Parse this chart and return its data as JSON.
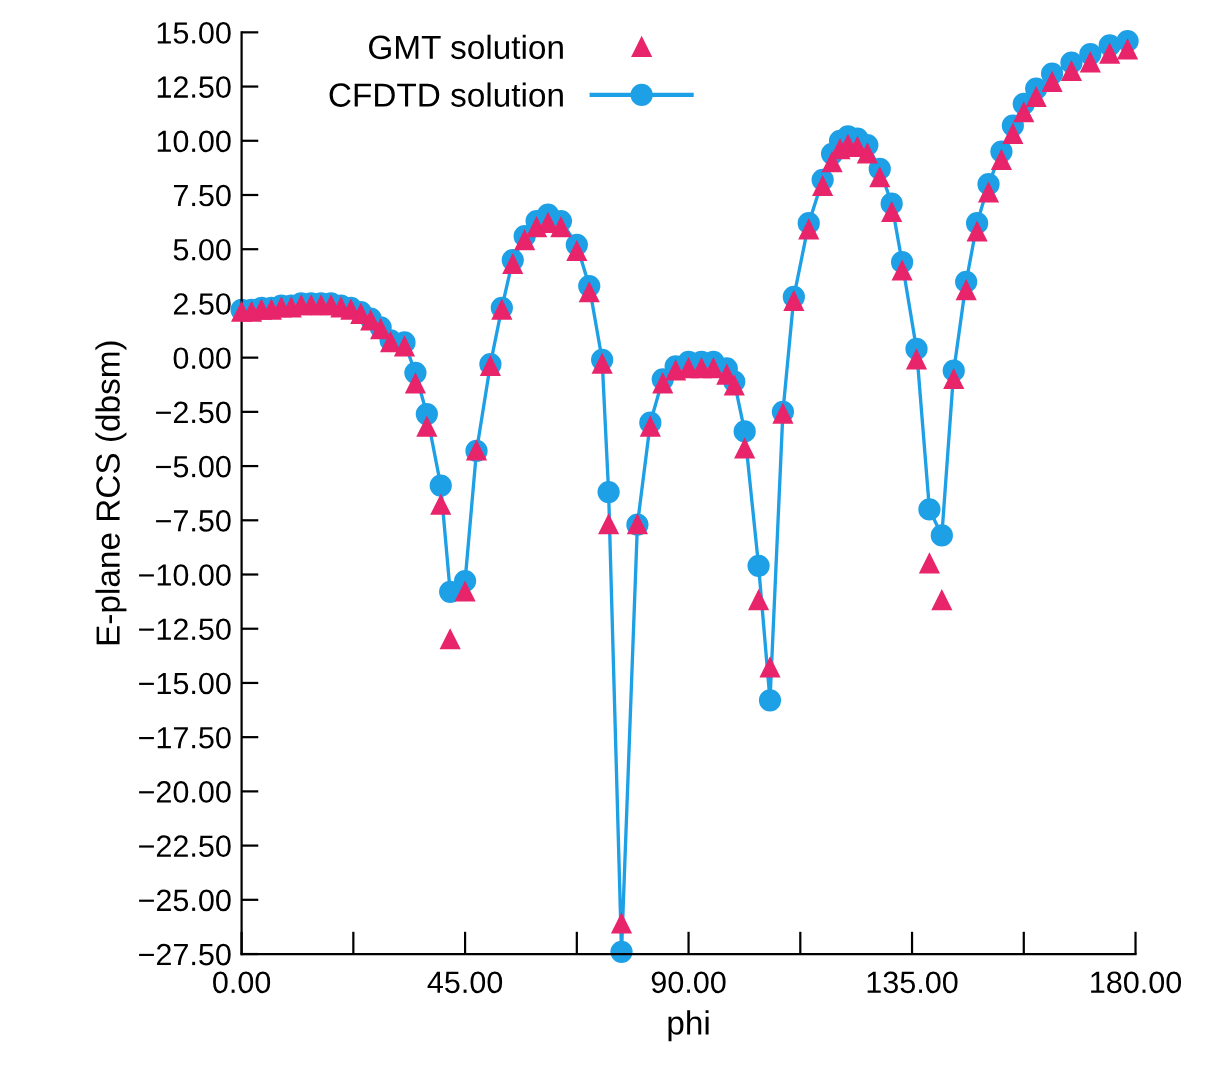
{
  "chart_data": {
    "type": "line",
    "xlabel": "phi",
    "ylabel": "E-plane RCS (dbsm)",
    "x": [
      0,
      2,
      4,
      6,
      8,
      10,
      12,
      14,
      16,
      18,
      20,
      22,
      24,
      26,
      28,
      30,
      32.8,
      35,
      37.3,
      40.1,
      42,
      45,
      47.3,
      50.1,
      52.4,
      54.6,
      57,
      59.4,
      61.7,
      64.3,
      67.5,
      70,
      72.6,
      73.9,
      76.5,
      79.7,
      82.3,
      84.8,
      87.4,
      90,
      92.6,
      95,
      97.7,
      99.2,
      101.3,
      104.1,
      106.4,
      109,
      111.2,
      114.2,
      117,
      118.9,
      120.5,
      122.1,
      124,
      126,
      128.5,
      130.9,
      133,
      135.9,
      138.5,
      141,
      143.4,
      145.9,
      148.1,
      150.4,
      153,
      155.3,
      157.5,
      160,
      163.2,
      167.1,
      170.9,
      174.8,
      178.4
    ],
    "series": [
      {
        "name": "GMT solution",
        "type": "scatter",
        "marker": "triangle",
        "color": "#e8246a",
        "values": [
          2.1,
          2.1,
          2.2,
          2.2,
          2.3,
          2.3,
          2.4,
          2.4,
          2.4,
          2.4,
          2.3,
          2.2,
          2.0,
          1.7,
          1.3,
          0.7,
          0.5,
          -1.2,
          -3.2,
          -6.8,
          -13.0,
          -10.8,
          -4.3,
          -0.4,
          2.2,
          4.3,
          5.4,
          6.0,
          6.2,
          6.0,
          4.9,
          3.0,
          -0.3,
          -7.7,
          -26.1,
          -7.7,
          -3.2,
          -1.2,
          -0.6,
          -0.5,
          -0.5,
          -0.5,
          -0.8,
          -1.3,
          -4.2,
          -11.2,
          -14.3,
          -2.6,
          2.6,
          5.9,
          7.9,
          9.0,
          9.6,
          9.8,
          9.7,
          9.4,
          8.3,
          6.7,
          4.0,
          -0.1,
          -9.5,
          -11.2,
          -1.0,
          3.1,
          5.8,
          7.6,
          9.1,
          10.3,
          11.3,
          12.0,
          12.7,
          13.2,
          13.6,
          14.0,
          14.2
        ]
      },
      {
        "name": "CFDTD solution",
        "marker": "circle",
        "color": "#1ea0e6",
        "values": [
          2.2,
          2.2,
          2.3,
          2.3,
          2.4,
          2.4,
          2.5,
          2.5,
          2.5,
          2.5,
          2.4,
          2.3,
          2.1,
          1.8,
          1.4,
          0.8,
          0.7,
          -0.7,
          -2.6,
          -5.9,
          -10.8,
          -10.3,
          -4.3,
          -0.3,
          2.3,
          4.5,
          5.6,
          6.3,
          6.6,
          6.3,
          5.2,
          3.3,
          -0.1,
          -6.2,
          -27.4,
          -7.7,
          -3.0,
          -1.0,
          -0.4,
          -0.2,
          -0.2,
          -0.2,
          -0.5,
          -1.1,
          -3.4,
          -9.6,
          -15.8,
          -2.5,
          2.8,
          6.2,
          8.2,
          9.4,
          10.0,
          10.2,
          10.1,
          9.8,
          8.7,
          7.1,
          4.4,
          0.4,
          -7.0,
          -8.2,
          -0.6,
          3.5,
          6.2,
          8.0,
          9.5,
          10.7,
          11.7,
          12.4,
          13.1,
          13.6,
          14.0,
          14.4,
          14.6
        ]
      }
    ],
    "xlim": [
      0,
      180
    ],
    "xticks": [
      {
        "value": 0,
        "label": "0.00"
      },
      {
        "value": 22.5,
        "label": null
      },
      {
        "value": 45,
        "label": "45.00"
      },
      {
        "value": 67.5,
        "label": null
      },
      {
        "value": 90,
        "label": "90.00"
      },
      {
        "value": 112.5,
        "label": null
      },
      {
        "value": 135,
        "label": "135.00"
      },
      {
        "value": 157.5,
        "label": null
      },
      {
        "value": 180,
        "label": "180.00"
      }
    ],
    "ylim": [
      -27.5,
      15
    ],
    "yticks": [
      {
        "value": 15,
        "label": "15.00"
      },
      {
        "value": 12.5,
        "label": "12.50"
      },
      {
        "value": 10,
        "label": "10.00"
      },
      {
        "value": 7.5,
        "label": "7.50"
      },
      {
        "value": 5,
        "label": "5.00"
      },
      {
        "value": 2.5,
        "label": "2.50"
      },
      {
        "value": 0,
        "label": "0.00"
      },
      {
        "value": -2.5,
        "label": "−2.50"
      },
      {
        "value": -5,
        "label": "−5.00"
      },
      {
        "value": -7.5,
        "label": "−7.50"
      },
      {
        "value": -10,
        "label": "−10.00"
      },
      {
        "value": -12.5,
        "label": "−12.50"
      },
      {
        "value": -15,
        "label": "−15.00"
      },
      {
        "value": -17.5,
        "label": "−17.50"
      },
      {
        "value": -20,
        "label": "−20.00"
      },
      {
        "value": -22.5,
        "label": "−22.50"
      },
      {
        "value": -25,
        "label": "−25.00"
      },
      {
        "value": -27.5,
        "label": "−27.50"
      }
    ],
    "grid": false,
    "legend": "top"
  }
}
